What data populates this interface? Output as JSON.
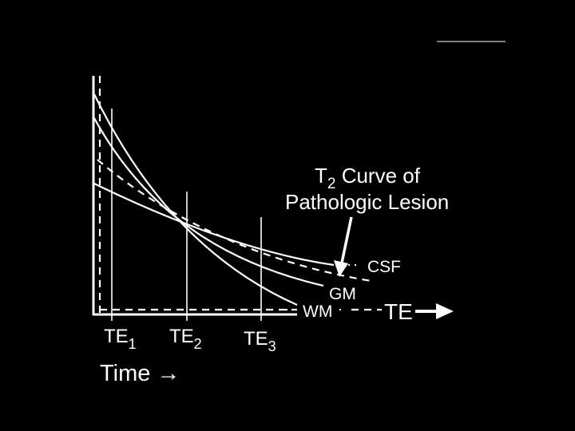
{
  "diagram": {
    "curves": {
      "csf": "CSF",
      "gm": "GM",
      "wm": "WM",
      "te_axis": "TE"
    },
    "te_markers": [
      {
        "base": "TE",
        "sub": "1"
      },
      {
        "base": "TE",
        "sub": "2"
      },
      {
        "base": "TE",
        "sub": "3"
      }
    ],
    "x_label": "Time →",
    "annotation": {
      "line1_prefix": "T",
      "line1_sub": "2",
      "line1_suffix": " Curve of",
      "line2": "Pathologic Lesion"
    },
    "colors": {
      "background": "#000000",
      "foreground": "#ffffff"
    }
  }
}
